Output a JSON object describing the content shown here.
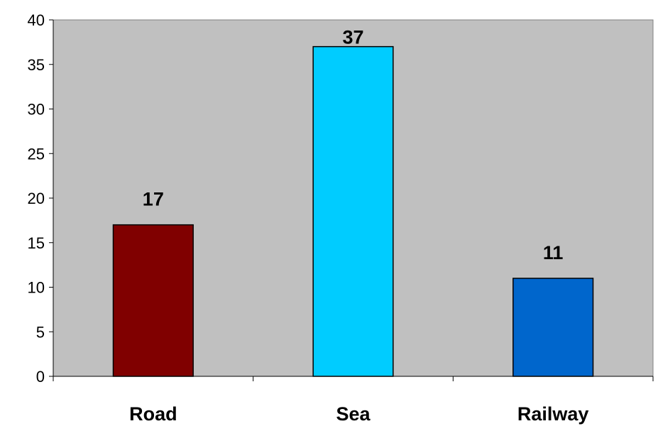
{
  "chart_data": {
    "type": "bar",
    "categories": [
      "Road",
      "Sea",
      "Railway"
    ],
    "values": [
      17,
      37,
      11
    ],
    "bar_colors": [
      "#800000",
      "#00CCFF",
      "#0066CC"
    ],
    "title": "",
    "xlabel": "",
    "ylabel": "",
    "ylim": [
      0,
      40
    ],
    "yticks": [
      0,
      5,
      10,
      15,
      20,
      25,
      30,
      35,
      40
    ],
    "grid": false,
    "legend": "none",
    "data_labels": [
      "17",
      "37",
      "11"
    ],
    "plot_background": "#C0C0C0",
    "page_background": "#FFFFFF"
  }
}
